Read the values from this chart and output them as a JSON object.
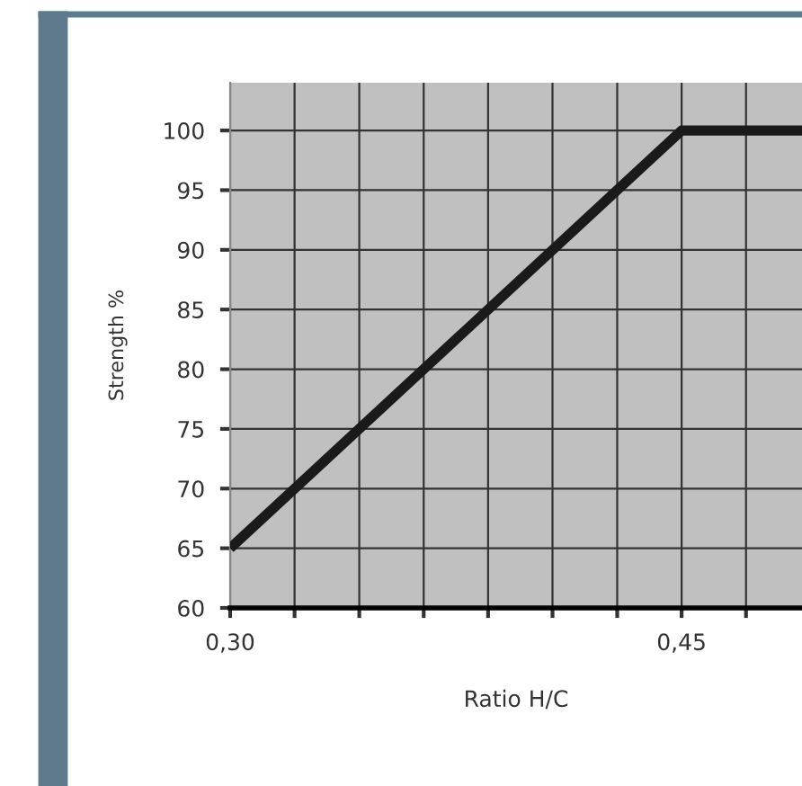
{
  "chart_data": {
    "type": "line",
    "xlabel": "Ratio H/C",
    "ylabel": "Strength %",
    "x": [
      0.3,
      0.45,
      0.49
    ],
    "series": [
      {
        "color": "#1a1a1a",
        "values": [
          65,
          100,
          100
        ]
      }
    ],
    "xlim": [
      0.3,
      0.49
    ],
    "xticks": [
      {
        "value": 0.3,
        "label": "0,30"
      },
      {
        "value": 0.3214,
        "label": null
      },
      {
        "value": 0.3429,
        "label": null
      },
      {
        "value": 0.3643,
        "label": null
      },
      {
        "value": 0.3857,
        "label": null
      },
      {
        "value": 0.4071,
        "label": null
      },
      {
        "value": 0.4286,
        "label": null
      },
      {
        "value": 0.45,
        "label": "0,45"
      },
      {
        "value": 0.4714,
        "label": null
      }
    ],
    "ylim": [
      60,
      104
    ],
    "yticks": [
      60,
      65,
      70,
      75,
      80,
      85,
      90,
      95,
      100
    ],
    "grid": true,
    "marker": "none",
    "line_style": "solid",
    "legend": false
  }
}
